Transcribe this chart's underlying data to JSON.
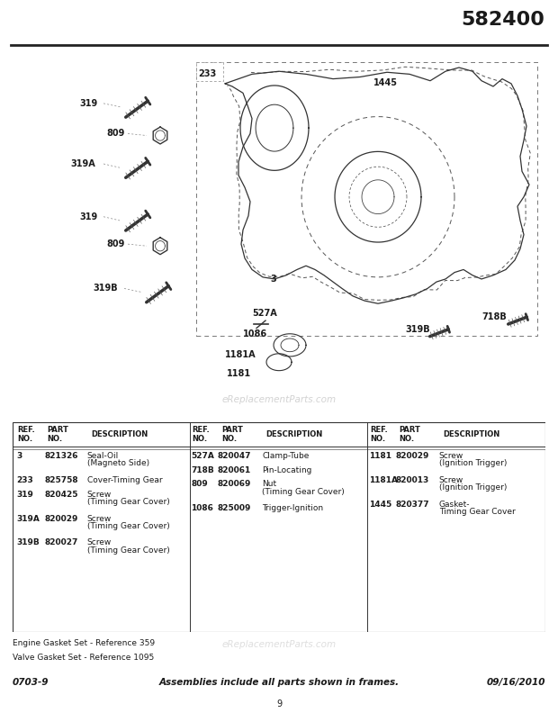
{
  "page_number": "582400",
  "doc_id": "0703-9",
  "date": "09/16/2010",
  "page_num": "9",
  "footer_note1": "Engine Gasket Set - Reference 359",
  "footer_note2": "Valve Gasket Set - Reference 1095",
  "footer_center": "Assemblies include all parts shown in frames.",
  "watermark": "eReplacementParts.com",
  "col1_parts": [
    [
      "3",
      "821326",
      "Seal-Oil",
      "(Magneto Side)"
    ],
    [
      "233",
      "825758",
      "Cover-Timing Gear",
      ""
    ],
    [
      "319",
      "820425",
      "Screw",
      "(Timing Gear Cover)"
    ],
    [
      "319A",
      "820029",
      "Screw",
      "(Timing Gear Cover)"
    ],
    [
      "319B",
      "820027",
      "Screw",
      "(Timing Gear Cover)"
    ]
  ],
  "col2_parts": [
    [
      "527A",
      "820047",
      "Clamp-Tube",
      ""
    ],
    [
      "718B",
      "820061",
      "Pin-Locating",
      ""
    ],
    [
      "809",
      "820069",
      "Nut",
      "(Timing Gear Cover)"
    ],
    [
      "1086",
      "825009",
      "Trigger-Ignition",
      ""
    ]
  ],
  "col3_parts": [
    [
      "1181",
      "820029",
      "Screw",
      "(Ignition Trigger)"
    ],
    [
      "1181A",
      "820013",
      "Screw",
      "(Ignition Trigger)"
    ],
    [
      "1445",
      "820377",
      "Gasket-",
      "Timing Gear Cover"
    ]
  ],
  "bg_color": "#ffffff",
  "text_color": "#1a1a1a",
  "line_color": "#444444",
  "dashed_color": "#888888",
  "title_size": 16,
  "body_size": 6.5,
  "header_size": 6.5
}
